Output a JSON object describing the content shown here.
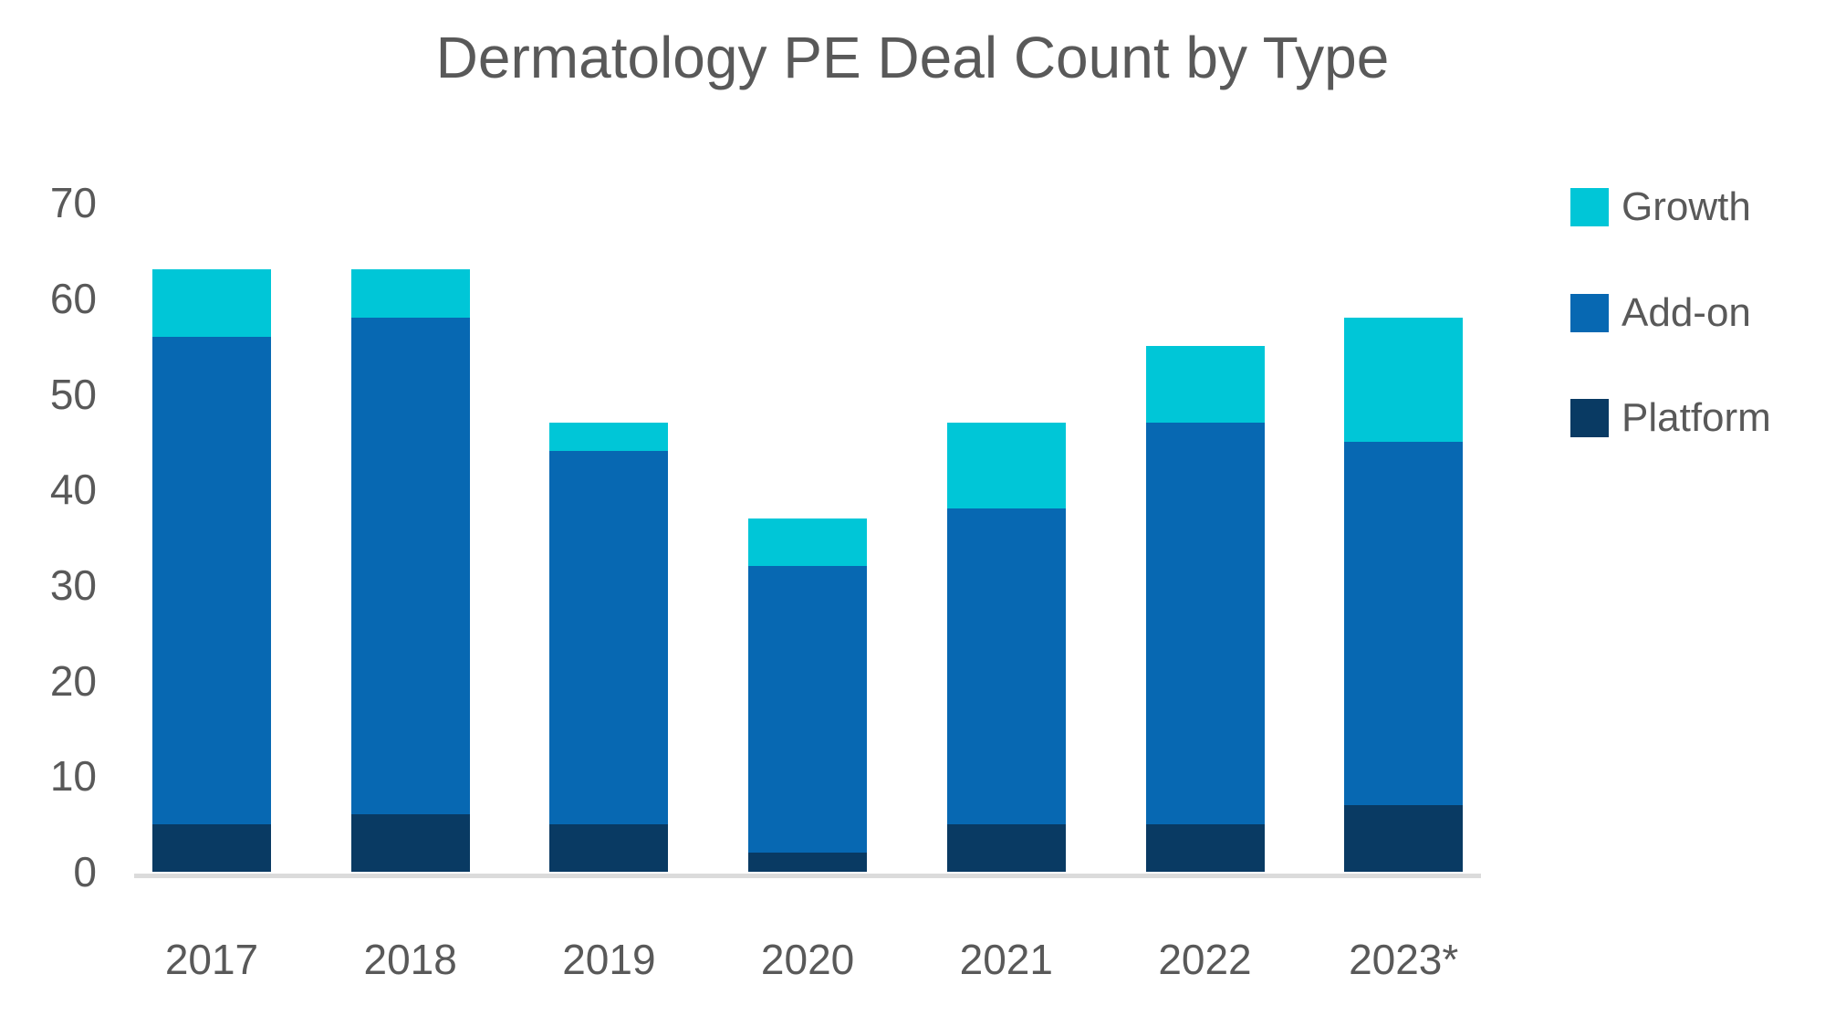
{
  "chart_data": {
    "type": "bar",
    "stacked": true,
    "title": "Dermatology PE Deal Count by Type",
    "categories": [
      "2017",
      "2018",
      "2019",
      "2020",
      "2021",
      "2022",
      "2023*"
    ],
    "series": [
      {
        "name": "Platform",
        "color": "#093A63",
        "values": [
          5,
          6,
          5,
          2,
          5,
          5,
          7
        ]
      },
      {
        "name": "Add-on",
        "color": "#0768B2",
        "values": [
          51,
          52,
          39,
          30,
          33,
          42,
          38
        ]
      },
      {
        "name": "Growth",
        "color": "#00C6D7",
        "values": [
          7,
          5,
          3,
          5,
          9,
          8,
          13
        ]
      }
    ],
    "stack_totals": [
      63,
      63,
      47,
      37,
      47,
      55,
      58
    ],
    "xlabel": "",
    "ylabel": "",
    "ylim": [
      0,
      70
    ],
    "yticks": [
      0,
      10,
      20,
      30,
      40,
      50,
      60,
      70
    ],
    "grid": false,
    "legend_position": "right",
    "legend_order": [
      "Growth",
      "Add-on",
      "Platform"
    ],
    "colors": {
      "text": "#595959",
      "axis_line": "#DBDBDB",
      "background": "#FFFFFF"
    }
  }
}
